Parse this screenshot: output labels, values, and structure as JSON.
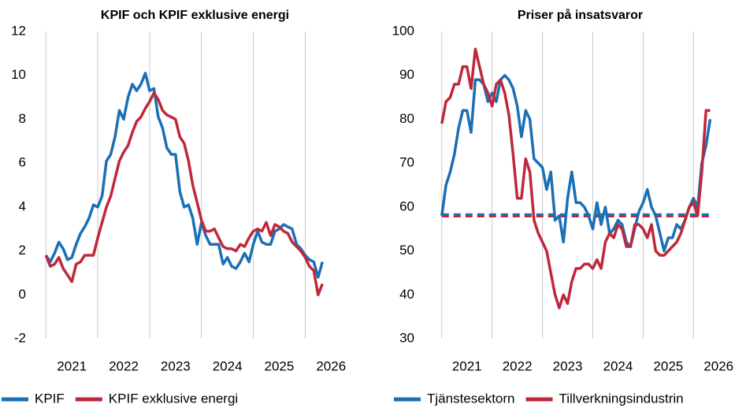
{
  "chart_data": [
    {
      "type": "line",
      "title": "KPIF och KPIF exklusive energi",
      "x": [
        2021,
        2021.083,
        2021.167,
        2021.25,
        2021.333,
        2021.417,
        2021.5,
        2021.583,
        2021.667,
        2021.75,
        2021.833,
        2021.917,
        2022,
        2022.083,
        2022.167,
        2022.25,
        2022.333,
        2022.417,
        2022.5,
        2022.583,
        2022.667,
        2022.75,
        2022.833,
        2022.917,
        2023,
        2023.083,
        2023.167,
        2023.25,
        2023.333,
        2023.417,
        2023.5,
        2023.583,
        2023.667,
        2023.75,
        2023.833,
        2023.917,
        2024,
        2024.083,
        2024.167,
        2024.25,
        2024.333,
        2024.417,
        2024.5,
        2024.583,
        2024.667,
        2024.75,
        2024.833,
        2024.917,
        2025,
        2025.083,
        2025.167,
        2025.25,
        2025.333,
        2025.417,
        2025.5,
        2025.583,
        2025.667,
        2025.75,
        2025.833,
        2025.917,
        2026,
        2026.083,
        2026.167,
        2026.25,
        2026.333
      ],
      "series": [
        {
          "name": "KPIF",
          "color": "#1a6fb5",
          "values": [
            1.8,
            1.5,
            1.9,
            2.4,
            2.1,
            1.6,
            1.7,
            2.3,
            2.8,
            3.1,
            3.5,
            4.1,
            4.0,
            4.5,
            6.1,
            6.4,
            7.2,
            8.4,
            8.0,
            9.0,
            9.6,
            9.3,
            9.6,
            10.1,
            9.3,
            9.4,
            8.1,
            7.6,
            6.7,
            6.4,
            6.4,
            4.7,
            4.0,
            4.1,
            3.5,
            2.3,
            3.3,
            2.7,
            2.3,
            2.3,
            2.3,
            1.4,
            1.7,
            1.3,
            1.2,
            1.5,
            1.9,
            1.5,
            2.3,
            2.9,
            2.4,
            2.3,
            2.3,
            2.9,
            3.0,
            3.2,
            3.1,
            3.0,
            2.3,
            2.1,
            1.8,
            1.6,
            1.5,
            0.8,
            1.5
          ]
        },
        {
          "name": "KPIF exklusive energi",
          "color": "#c0283a",
          "values": [
            1.8,
            1.3,
            1.4,
            1.7,
            1.2,
            0.9,
            0.6,
            1.4,
            1.5,
            1.8,
            1.8,
            1.8,
            2.6,
            3.3,
            4.0,
            4.5,
            5.3,
            6.1,
            6.5,
            6.8,
            7.4,
            7.9,
            8.1,
            8.5,
            8.8,
            9.2,
            8.9,
            8.4,
            8.2,
            8.1,
            8.0,
            7.2,
            6.9,
            6.1,
            5.0,
            4.2,
            3.4,
            2.9,
            2.9,
            3.0,
            2.6,
            2.2,
            2.1,
            2.1,
            2.0,
            2.3,
            2.2,
            2.6,
            2.9,
            3.0,
            2.9,
            3.3,
            2.7,
            3.2,
            3.1,
            2.9,
            2.8,
            2.4,
            2.2,
            2.0,
            1.7,
            1.3,
            1.1,
            0.0,
            0.5
          ]
        }
      ],
      "xlim": [
        2020.95,
        2026.8
      ],
      "xticks": [
        2021,
        2022,
        2023,
        2024,
        2025,
        2026
      ],
      "ylim": [
        -2,
        12
      ],
      "yticks": [
        -2,
        0,
        2,
        4,
        6,
        8,
        10,
        12
      ],
      "grid": "x"
    },
    {
      "type": "line",
      "title": "Priser på insatsvaror",
      "x": [
        2021,
        2021.083,
        2021.167,
        2021.25,
        2021.333,
        2021.417,
        2021.5,
        2021.583,
        2021.667,
        2021.75,
        2021.833,
        2021.917,
        2022,
        2022.083,
        2022.167,
        2022.25,
        2022.333,
        2022.417,
        2022.5,
        2022.583,
        2022.667,
        2022.75,
        2022.833,
        2022.917,
        2023,
        2023.083,
        2023.167,
        2023.25,
        2023.333,
        2023.417,
        2023.5,
        2023.583,
        2023.667,
        2023.75,
        2023.833,
        2023.917,
        2024,
        2024.083,
        2024.167,
        2024.25,
        2024.333,
        2024.417,
        2024.5,
        2024.583,
        2024.667,
        2024.75,
        2024.833,
        2024.917,
        2025,
        2025.083,
        2025.167,
        2025.25,
        2025.333,
        2025.417,
        2025.5,
        2025.583,
        2025.667,
        2025.75,
        2025.833,
        2025.917,
        2026,
        2026.083,
        2026.167,
        2026.25,
        2026.333
      ],
      "series": [
        {
          "name": "Tjänstesektorn",
          "color": "#1a6fb5",
          "values": [
            58,
            65,
            68,
            72,
            78,
            82,
            82,
            77,
            89,
            89,
            88,
            84,
            86,
            84,
            89,
            90,
            89,
            87,
            83,
            76,
            82,
            80,
            71,
            70,
            69,
            64,
            68,
            57,
            58,
            52,
            62,
            68,
            61,
            61,
            60,
            58,
            55,
            61,
            56,
            60,
            54,
            55,
            57,
            56,
            52,
            51,
            55,
            59,
            61,
            64,
            60,
            58,
            54,
            50,
            53,
            53,
            56,
            55,
            57,
            60,
            62,
            60,
            70,
            74,
            80
          ]
        },
        {
          "name": "Tillverkningsindustrin",
          "color": "#c0283a",
          "values": [
            79,
            84,
            85,
            88,
            88,
            92,
            92,
            87,
            96,
            92,
            88,
            86,
            83,
            88,
            89,
            86,
            81,
            72,
            62,
            62,
            71,
            68,
            57,
            54,
            52,
            50,
            45,
            40,
            37,
            40,
            38,
            43,
            46,
            46,
            47,
            47,
            46,
            48,
            46,
            52,
            54,
            53,
            56,
            55,
            51,
            51,
            56,
            56,
            55,
            53,
            56,
            50,
            49,
            49,
            50,
            51,
            52,
            54,
            57,
            60,
            61,
            58,
            68,
            82,
            82
          ]
        }
      ],
      "reference_lines": [
        {
          "value": 57.9,
          "color": "#c0283a"
        },
        {
          "value": 58.3,
          "color": "#1a6fb5"
        }
      ],
      "xlim": [
        2020.8,
        2026.7
      ],
      "xticks": [
        2021,
        2022,
        2023,
        2024,
        2025,
        2026
      ],
      "ylim": [
        30,
        100
      ],
      "yticks": [
        30,
        40,
        50,
        60,
        70,
        80,
        90,
        100
      ],
      "grid": "x"
    }
  ]
}
